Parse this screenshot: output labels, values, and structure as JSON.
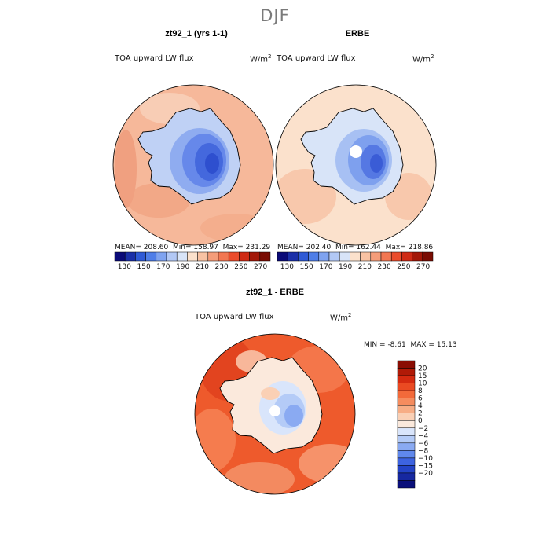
{
  "figure": {
    "season": "DJF",
    "panels": [
      {
        "title": "zt92_1 (yrs 1-1)",
        "variable": "TOA upward LW flux",
        "units": "W/m",
        "units_sup": "2",
        "mean_label": "MEAN=",
        "mean": "208.60",
        "min_label": "Min=",
        "min": "158.97",
        "max_label": "Max=",
        "max": "231.29"
      },
      {
        "title": "ERBE",
        "variable": "TOA upward LW flux",
        "units": "W/m",
        "units_sup": "2",
        "mean_label": "MEAN=",
        "mean": "202.40",
        "min_label": "Min=",
        "min": "162.44",
        "max_label": "Max=",
        "max": "218.86"
      }
    ],
    "diff_panel": {
      "title": "zt92_1 - ERBE",
      "variable": "TOA upward LW flux",
      "units": "W/m",
      "units_sup": "2",
      "min_label": "MIN =",
      "min": "-8.61",
      "max_label": "MAX =",
      "max": "15.13"
    }
  },
  "chart_data": [
    {
      "type": "heatmap",
      "title": "zt92_1 (yrs 1-1)",
      "subtitle": "TOA upward LW flux",
      "units": "W/m2",
      "projection": "south polar stereographic",
      "stats": {
        "mean": 208.6,
        "min": 158.97,
        "max": 231.29
      },
      "colorbar_levels": [
        130,
        150,
        170,
        190,
        210,
        230,
        250,
        270
      ],
      "colorbar_colors": [
        "#0a0a78",
        "#1a2fa8",
        "#2f5ad6",
        "#4f7ee8",
        "#7fa3f0",
        "#b2c8f5",
        "#d8e4f8",
        "#fbe1cc",
        "#f8c2a3",
        "#f59d7a",
        "#f27752",
        "#ea4c2c",
        "#cf2b15",
        "#a31808",
        "#7a0c03"
      ],
      "colorbar_tick_labels": [
        "130",
        "150",
        "170",
        "190",
        "210",
        "230",
        "250",
        "270"
      ]
    },
    {
      "type": "heatmap",
      "title": "ERBE",
      "subtitle": "TOA upward LW flux",
      "units": "W/m2",
      "projection": "south polar stereographic",
      "stats": {
        "mean": 202.4,
        "min": 162.44,
        "max": 218.86
      },
      "colorbar_levels": [
        130,
        150,
        170,
        190,
        210,
        230,
        250,
        270
      ],
      "colorbar_colors": [
        "#0a0a78",
        "#1a2fa8",
        "#2f5ad6",
        "#4f7ee8",
        "#7fa3f0",
        "#b2c8f5",
        "#d8e4f8",
        "#fbe1cc",
        "#f8c2a3",
        "#f59d7a",
        "#f27752",
        "#ea4c2c",
        "#cf2b15",
        "#a31808",
        "#7a0c03"
      ],
      "colorbar_tick_labels": [
        "130",
        "150",
        "170",
        "190",
        "210",
        "230",
        "250",
        "270"
      ]
    },
    {
      "type": "heatmap",
      "title": "zt92_1 - ERBE",
      "subtitle": "TOA upward LW flux",
      "units": "W/m2",
      "projection": "south polar stereographic",
      "stats": {
        "min": -8.61,
        "max": 15.13
      },
      "colorbar_levels": [
        -20,
        -15,
        -10,
        -8,
        -6,
        -4,
        -2,
        0,
        2,
        4,
        6,
        8,
        10,
        15,
        20
      ],
      "colorbar_tick_labels": [
        "20",
        "15",
        "10",
        "8",
        "6",
        "4",
        "2",
        "0",
        "−2",
        "−4",
        "−6",
        "−8",
        "−10",
        "−15",
        "−20"
      ],
      "colorbar_colors": [
        "#8a0d03",
        "#b01a07",
        "#d42a10",
        "#ea4a22",
        "#f26a3a",
        "#f58c5e",
        "#f7ad85",
        "#fad0b5",
        "#fbe9dc",
        "#d9e5fb",
        "#b4cbf7",
        "#8aaaf2",
        "#6088ec",
        "#3d63e0",
        "#2343c6",
        "#1628a0",
        "#0a0f7a"
      ]
    }
  ]
}
